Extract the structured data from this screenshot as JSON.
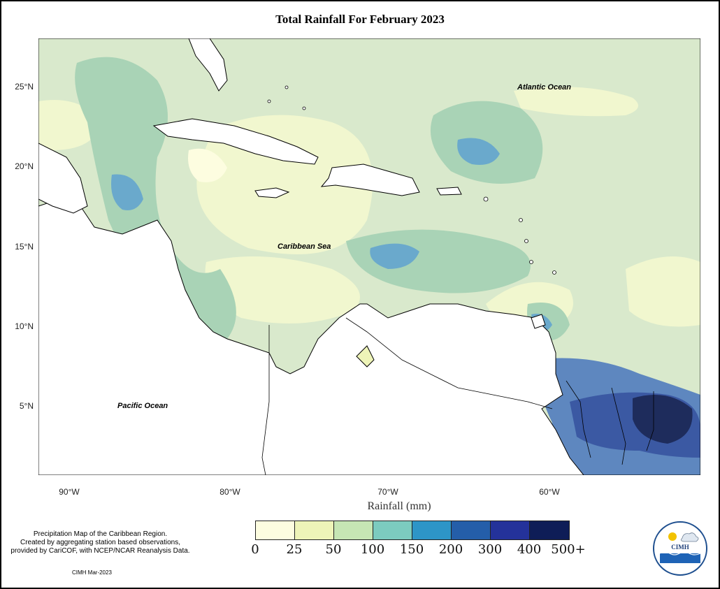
{
  "title": "Total Rainfall For February 2023",
  "axes": {
    "y_ticks": [
      "25°N",
      "20°N",
      "15°N",
      "10°N",
      "5°N"
    ],
    "x_ticks": [
      "90°W",
      "80°W",
      "70°W",
      "60°W"
    ],
    "x_label": "Rainfall (mm)"
  },
  "map_labels": {
    "atlantic": "Atlantic Ocean",
    "caribbean": "Caribbean Sea",
    "pacific": "Pacific Ocean"
  },
  "legend": {
    "colors": [
      "#fdfde0",
      "#eef4b8",
      "#c6e6b4",
      "#7ccbbf",
      "#2d95c7",
      "#245ea9",
      "#24329a",
      "#0e1d57"
    ],
    "labels": [
      "0",
      "25",
      "50",
      "100",
      "150",
      "200",
      "300",
      "400",
      "500+"
    ]
  },
  "footnote": {
    "lines": [
      "Precipitation Map of the Caribbean Region.",
      "Created by aggregating station based observations,",
      "provided by CariCOF, with NCEP/NCAR Reanalysis Data."
    ],
    "credit": "CIMH Mar-2023"
  },
  "logo": {
    "text": "CIMH"
  }
}
